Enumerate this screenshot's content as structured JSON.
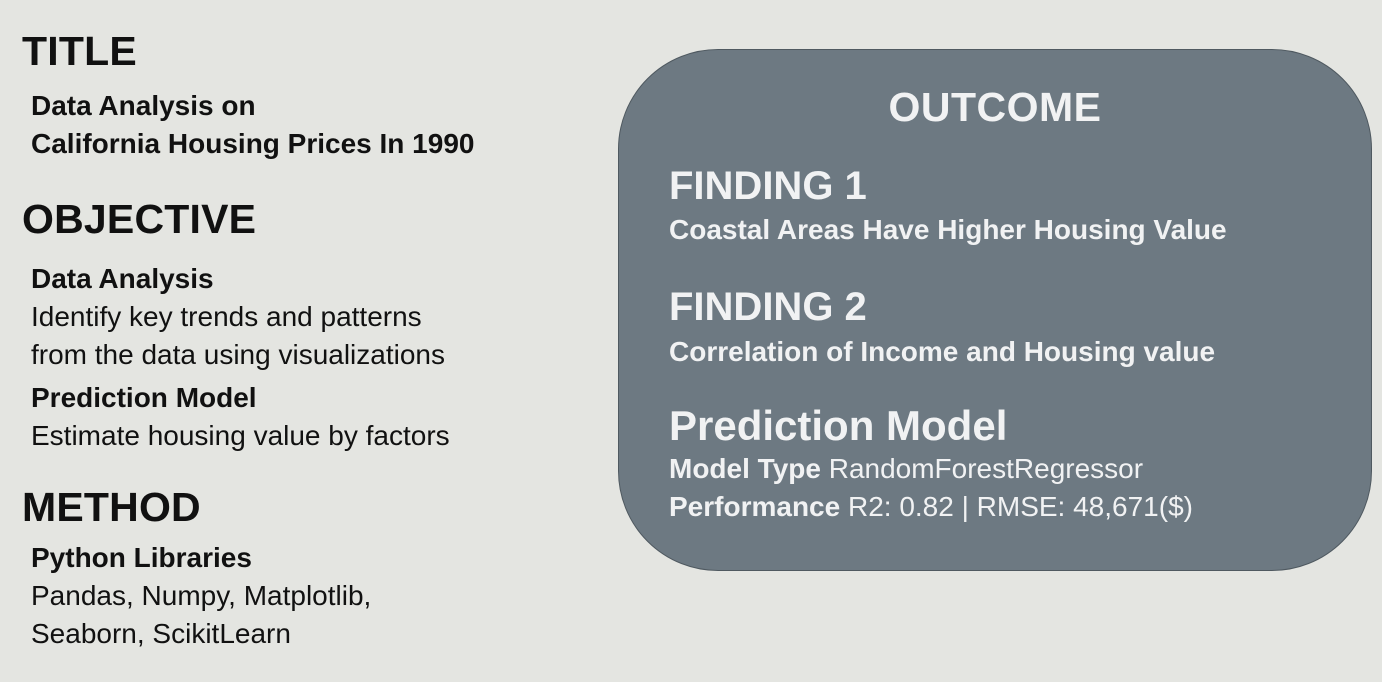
{
  "left": {
    "title_heading": "TITLE",
    "title_lines": [
      "Data Analysis on",
      "California Housing Prices In 1990"
    ],
    "objective_heading": "OBJECTIVE",
    "objective": {
      "analysis_label": "Data Analysis",
      "analysis_lines": [
        "Identify key trends and patterns",
        "from the data using visualizations"
      ],
      "model_label": "Prediction Model",
      "model_line": "Estimate housing value by factors"
    },
    "method_heading": "METHOD",
    "method": {
      "label": "Python Libraries",
      "lines": [
        "Pandas, Numpy, Matplotlib,",
        "Seaborn, ScikitLearn"
      ]
    }
  },
  "outcome": {
    "heading": "OUTCOME",
    "findings": [
      {
        "title": "FINDING 1",
        "description": "Coastal Areas Have Higher Housing Value"
      },
      {
        "title": "FINDING 2",
        "description": "Correlation of Income and Housing value"
      }
    ],
    "model": {
      "title": "Prediction Model",
      "type_label": "Model Type",
      "type_value": "RandomForestRegressor",
      "performance_label": "Performance",
      "performance_value": "R2: 0.82 | RMSE: 48,671($)"
    }
  },
  "colors": {
    "background": "#e4e5e1",
    "outcome_box": "#6d7982",
    "outcome_text": "#f1f2f3",
    "text": "#111111"
  }
}
